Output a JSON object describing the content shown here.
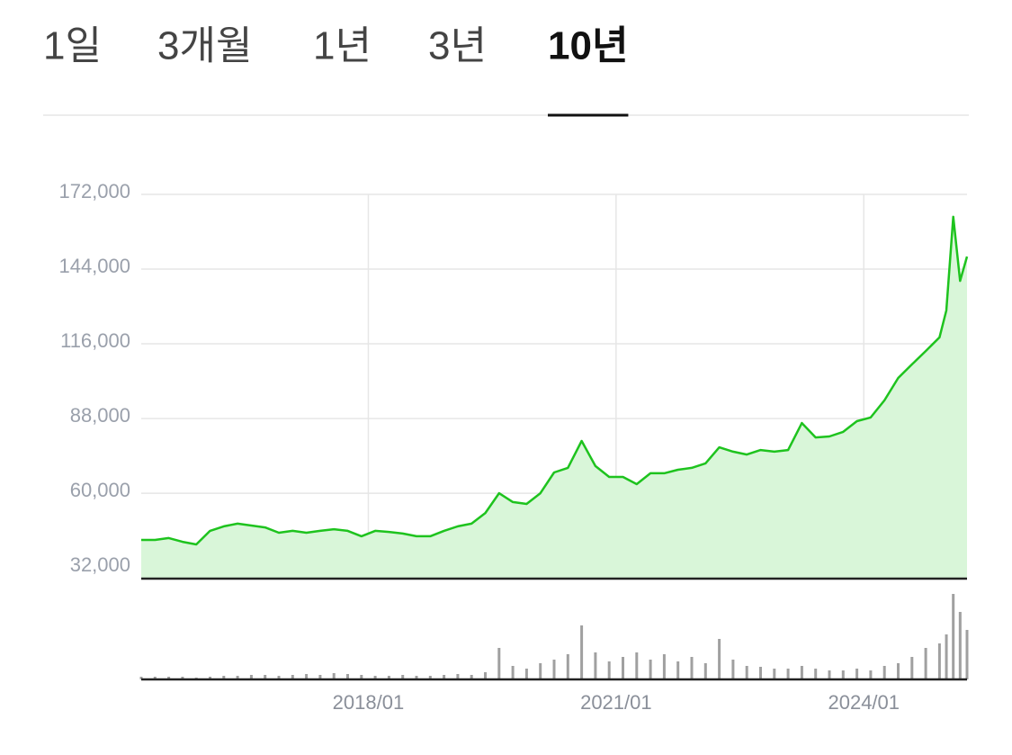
{
  "tabs": {
    "items": [
      "1일",
      "3개월",
      "1년",
      "3년",
      "10년"
    ],
    "selected": 4
  },
  "chart_data": {
    "type": "line",
    "x": [
      "2015/04",
      "2015/06",
      "2015/08",
      "2015/10",
      "2015/12",
      "2016/02",
      "2016/04",
      "2016/06",
      "2016/08",
      "2016/10",
      "2016/12",
      "2017/02",
      "2017/04",
      "2017/06",
      "2017/08",
      "2017/10",
      "2017/12",
      "2018/02",
      "2018/04",
      "2018/06",
      "2018/08",
      "2018/10",
      "2018/12",
      "2019/02",
      "2019/04",
      "2019/06",
      "2019/08",
      "2019/10",
      "2019/12",
      "2020/02",
      "2020/04",
      "2020/06",
      "2020/08",
      "2020/10",
      "2020/12",
      "2021/02",
      "2021/04",
      "2021/06",
      "2021/08",
      "2021/10",
      "2021/12",
      "2022/02",
      "2022/04",
      "2022/06",
      "2022/08",
      "2022/10",
      "2022/12",
      "2023/02",
      "2023/04",
      "2023/06",
      "2023/08",
      "2023/10",
      "2023/12",
      "2024/02",
      "2024/04",
      "2024/06",
      "2024/08",
      "2024/10",
      "2024/12",
      "2025/01",
      "2025/02",
      "2025/03",
      "2025/04"
    ],
    "series": [
      {
        "color": "#1ec31e",
        "fill": "#d9f6d9",
        "values": [
          42500,
          42500,
          43200,
          41800,
          40800,
          45900,
          47600,
          48600,
          47900,
          47200,
          45200,
          45900,
          45200,
          45900,
          46500,
          45900,
          43900,
          45900,
          45500,
          44900,
          43900,
          43900,
          45900,
          47600,
          48600,
          52600,
          60000,
          56700,
          56000,
          60000,
          67800,
          69500,
          79600,
          70200,
          66100,
          66100,
          63400,
          67500,
          67500,
          68800,
          69500,
          71200,
          77200,
          75600,
          74500,
          76200,
          75600,
          76200,
          86300,
          80900,
          81300,
          83000,
          87000,
          88400,
          94800,
          103200,
          108300,
          113300,
          118400,
          128500,
          163600,
          139600,
          148700
        ]
      }
    ],
    "volume": {
      "color": "#a0a0a0",
      "ylim": [
        0,
        100
      ],
      "values": [
        3,
        3,
        3,
        3,
        2,
        3,
        4,
        4,
        5,
        5,
        4,
        5,
        6,
        5,
        7,
        6,
        5,
        4,
        4,
        5,
        4,
        4,
        5,
        6,
        5,
        8,
        35,
        15,
        12,
        18,
        22,
        28,
        60,
        30,
        20,
        25,
        30,
        22,
        28,
        20,
        25,
        18,
        45,
        22,
        15,
        14,
        12,
        12,
        15,
        12,
        10,
        10,
        12,
        10,
        15,
        18,
        25,
        35,
        40,
        50,
        95,
        75,
        55
      ]
    },
    "xlim": [
      "2015/04",
      "2025/04"
    ],
    "xticks": [
      "2018/01",
      "2021/01",
      "2024/01"
    ],
    "ylim": [
      28000,
      172000
    ],
    "yticks": [
      {
        "value": 32000,
        "label": "32,000"
      },
      {
        "value": 60000,
        "label": "60,000"
      },
      {
        "value": 88000,
        "label": "88,000"
      },
      {
        "value": 116000,
        "label": "116,000"
      },
      {
        "value": 144000,
        "label": "144,000"
      },
      {
        "value": 172000,
        "label": "172,000"
      }
    ],
    "grid": true
  }
}
